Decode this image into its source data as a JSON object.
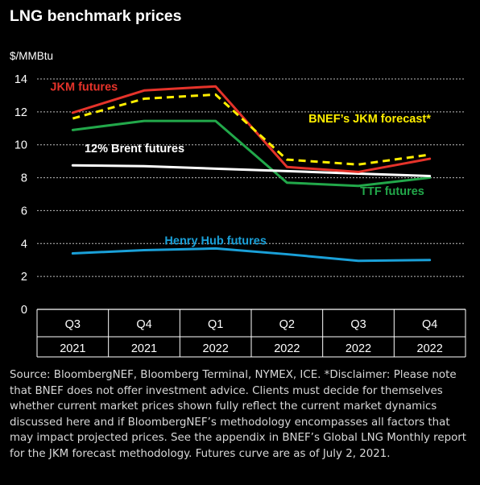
{
  "title": "LNG benchmark prices",
  "unit": "$/MMBtu",
  "source": "Source: BloombergNEF, Bloomberg Terminal, NYMEX, ICE. *Disclaimer: Please note that BNEF does not offer investment advice. Clients must decide for themselves whether current market prices shown fully reflect the current market dynamics discussed here and if BloombergNEF’s methodology encompasses all factors that may impact projected prices. See the appendix in BNEF’s Global LNG Monthly report for the JKM forecast methodology. Futures curve are as of July 2, 2021.",
  "chart_data": {
    "type": "line",
    "title": "LNG benchmark prices",
    "ylabel": "$/MMBtu",
    "ylim": [
      0,
      14
    ],
    "yticks": [
      0,
      2,
      4,
      6,
      8,
      10,
      12,
      14
    ],
    "grid": true,
    "categories": [
      {
        "q": "Q3",
        "y": "2021"
      },
      {
        "q": "Q4",
        "y": "2021"
      },
      {
        "q": "Q1",
        "y": "2022"
      },
      {
        "q": "Q2",
        "y": "2022"
      },
      {
        "q": "Q3",
        "y": "2022"
      },
      {
        "q": "Q4",
        "y": "2022"
      }
    ],
    "series": [
      {
        "name": "Henry Hub futures",
        "color": "#1aa0d8",
        "dash": false,
        "values": [
          3.4,
          3.6,
          3.7,
          3.35,
          2.95,
          3.0
        ]
      },
      {
        "name": "TTF futures",
        "color": "#22a84a",
        "dash": false,
        "values": [
          10.9,
          11.45,
          11.45,
          7.7,
          7.5,
          8.0
        ]
      },
      {
        "name": "12% Brent futures",
        "color": "#ffffff",
        "dash": false,
        "values": [
          8.75,
          8.7,
          8.55,
          8.4,
          8.25,
          8.1
        ]
      },
      {
        "name": "JKM futures",
        "color": "#e5332a",
        "dash": false,
        "values": [
          11.95,
          13.3,
          13.55,
          8.65,
          8.35,
          9.15
        ]
      },
      {
        "name": "BNEF’s JKM forecast*",
        "color": "#ffee00",
        "dash": true,
        "values": [
          11.6,
          12.8,
          13.05,
          9.1,
          8.8,
          9.4
        ]
      }
    ]
  }
}
